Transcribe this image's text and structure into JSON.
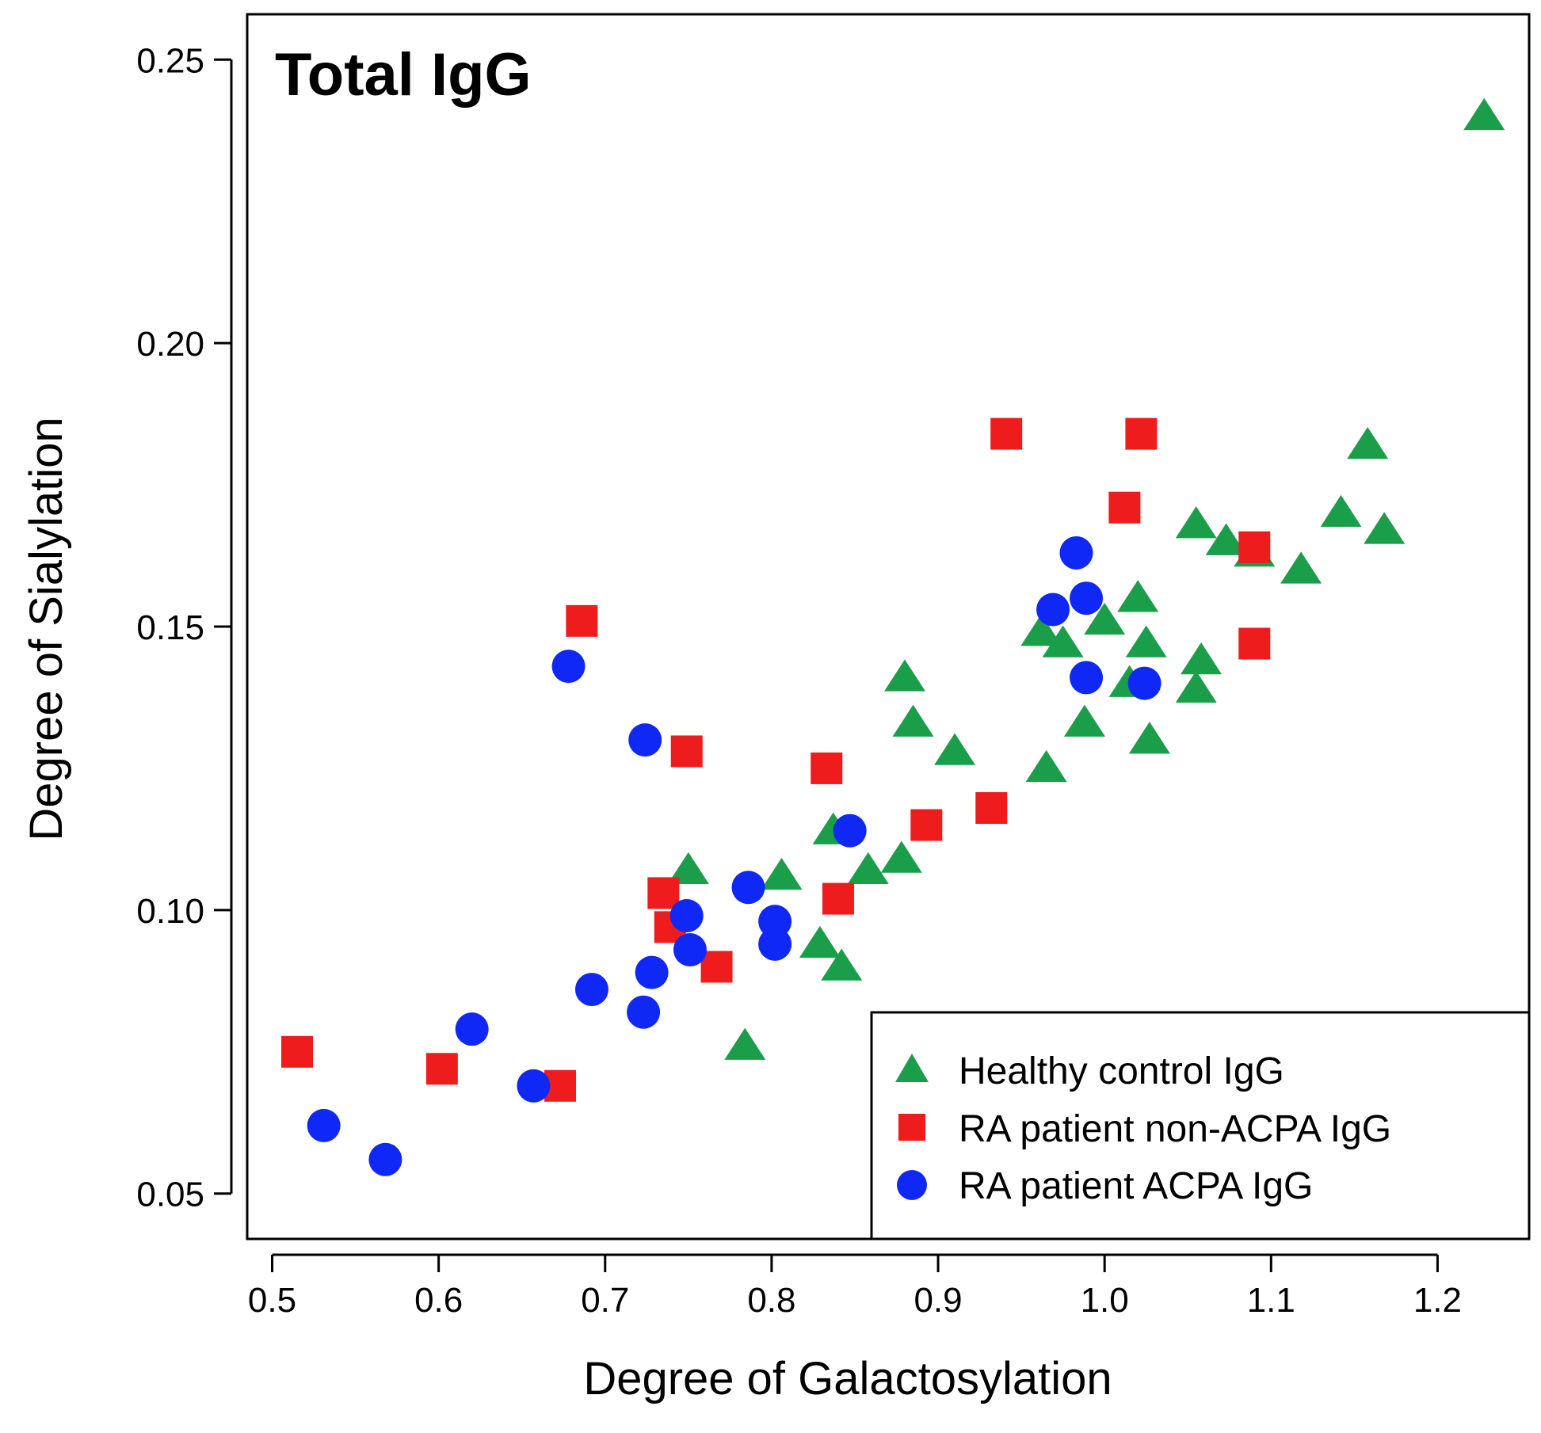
{
  "chart_data": {
    "type": "scatter",
    "title": "Total IgG",
    "xlabel": "Degree of Galactosylation",
    "ylabel": "Degree of Sialylation",
    "xlim": [
      0.485,
      1.255
    ],
    "ylim": [
      0.042,
      0.258
    ],
    "xticks": [
      0.5,
      0.6,
      0.7,
      0.8,
      0.9,
      1.0,
      1.1,
      1.2
    ],
    "xtick_labels": [
      "0.5",
      "0.6",
      "0.7",
      "0.8",
      "0.9",
      "1.0",
      "1.1",
      "1.2"
    ],
    "yticks": [
      0.05,
      0.1,
      0.15,
      0.2,
      0.25
    ],
    "ytick_labels": [
      "0.05",
      "0.10",
      "0.15",
      "0.20",
      "0.25"
    ],
    "legend_position": "bottom-right",
    "series": [
      {
        "name": "Healthy control IgG",
        "marker": "triangle",
        "color": "#1a9e4a",
        "x": [
          1.228,
          1.158,
          1.142,
          1.168,
          1.055,
          1.073,
          1.09,
          1.118,
          1.02,
          1.0,
          0.962,
          0.975,
          1.025,
          1.058,
          1.055,
          1.015,
          0.988,
          1.027,
          0.965,
          0.88,
          0.885,
          0.91,
          0.837,
          0.878,
          0.858,
          0.75,
          0.806,
          0.829,
          0.842,
          0.784
        ],
        "y": [
          0.24,
          0.182,
          0.17,
          0.167,
          0.168,
          0.165,
          0.163,
          0.16,
          0.155,
          0.151,
          0.149,
          0.147,
          0.147,
          0.144,
          0.139,
          0.14,
          0.133,
          0.13,
          0.125,
          0.141,
          0.133,
          0.128,
          0.114,
          0.109,
          0.107,
          0.107,
          0.106,
          0.094,
          0.09,
          0.076
        ]
      },
      {
        "name": "RA patient non-ACPA IgG",
        "marker": "square",
        "color": "#ee1c1c",
        "x": [
          0.941,
          1.022,
          1.012,
          1.09,
          0.686,
          1.09,
          0.749,
          0.833,
          0.932,
          0.893,
          0.735,
          0.84,
          0.739,
          0.767,
          0.515,
          0.602,
          0.673
        ],
        "y": [
          0.184,
          0.184,
          0.171,
          0.164,
          0.151,
          0.147,
          0.128,
          0.125,
          0.118,
          0.115,
          0.103,
          0.102,
          0.097,
          0.09,
          0.075,
          0.072,
          0.069
        ]
      },
      {
        "name": "RA patient ACPA IgG",
        "marker": "circle",
        "color": "#0f28f5",
        "x": [
          0.983,
          0.969,
          0.989,
          0.678,
          0.989,
          1.024,
          0.724,
          0.847,
          0.786,
          0.749,
          0.802,
          0.751,
          0.802,
          0.728,
          0.692,
          0.723,
          0.62,
          0.657,
          0.531,
          0.568
        ],
        "y": [
          0.163,
          0.153,
          0.155,
          0.143,
          0.141,
          0.14,
          0.13,
          0.114,
          0.104,
          0.099,
          0.098,
          0.093,
          0.094,
          0.089,
          0.086,
          0.082,
          0.079,
          0.069,
          0.062,
          0.056
        ]
      }
    ]
  }
}
